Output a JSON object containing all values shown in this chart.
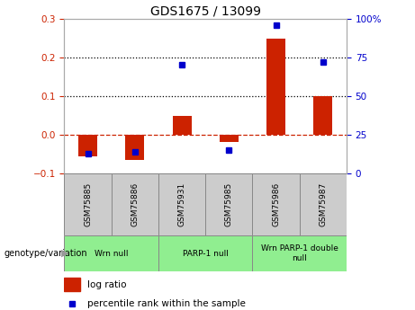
{
  "title": "GDS1675 / 13099",
  "samples": [
    "GSM75885",
    "GSM75886",
    "GSM75931",
    "GSM75985",
    "GSM75986",
    "GSM75987"
  ],
  "log_ratio": [
    -0.055,
    -0.065,
    0.048,
    -0.018,
    0.248,
    0.1
  ],
  "percentile_rank": [
    13,
    14,
    70,
    15,
    96,
    72
  ],
  "ylim_left": [
    -0.1,
    0.3
  ],
  "ylim_right": [
    0,
    100
  ],
  "groups": [
    {
      "label": "Wrn null",
      "start": 0,
      "end": 2,
      "color": "#90EE90"
    },
    {
      "label": "PARP-1 null",
      "start": 2,
      "end": 4,
      "color": "#90EE90"
    },
    {
      "label": "Wrn PARP-1 double\nnull",
      "start": 4,
      "end": 6,
      "color": "#90EE90"
    }
  ],
  "bar_color": "#CC2200",
  "scatter_color": "#0000CC",
  "zero_line_color": "#CC2200",
  "dotted_line_color": "black",
  "tick_label_color_left": "#CC2200",
  "tick_label_color_right": "#0000CC",
  "sample_box_color": "#CCCCCC",
  "legend_log_ratio_color": "#CC2200",
  "legend_percentile_color": "#0000CC",
  "bar_width": 0.4
}
